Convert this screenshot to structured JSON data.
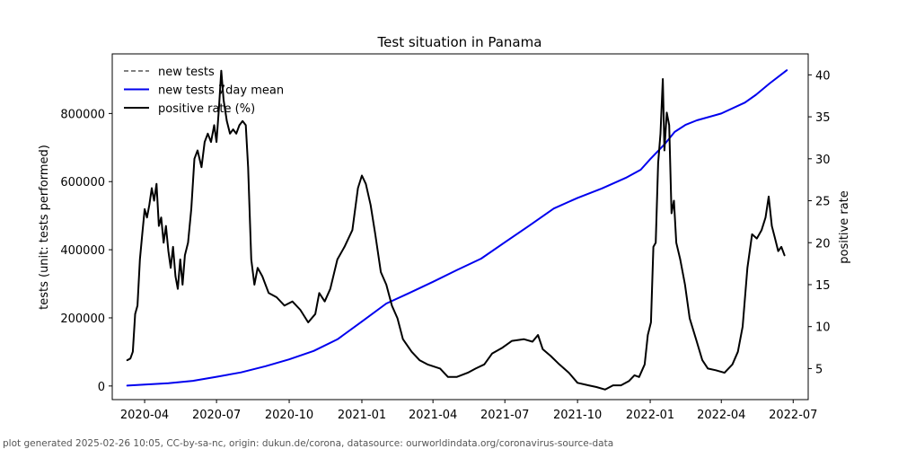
{
  "chart_data": {
    "type": "line",
    "title": "Test situation in Panama",
    "ylabel_left": "tests (unit: tests performed)",
    "ylabel_right": "positive rate",
    "xlim": [
      "2020-02-20",
      "2022-07-20"
    ],
    "ylim_left": [
      -40000,
      975000
    ],
    "ylim_right": [
      1.3,
      42.5
    ],
    "x_ticks": [
      {
        "date": "2020-04-01",
        "label": "2020-04"
      },
      {
        "date": "2020-07-01",
        "label": "2020-07"
      },
      {
        "date": "2020-10-01",
        "label": "2020-10"
      },
      {
        "date": "2021-01-01",
        "label": "2021-01"
      },
      {
        "date": "2021-04-01",
        "label": "2021-04"
      },
      {
        "date": "2021-07-01",
        "label": "2021-07"
      },
      {
        "date": "2021-10-01",
        "label": "2021-10"
      },
      {
        "date": "2022-01-01",
        "label": "2022-01"
      },
      {
        "date": "2022-04-01",
        "label": "2022-04"
      },
      {
        "date": "2022-07-01",
        "label": "2022-07"
      }
    ],
    "y_left_ticks": [
      {
        "value": 0,
        "label": "0"
      },
      {
        "value": 200000,
        "label": "200000"
      },
      {
        "value": 400000,
        "label": "400000"
      },
      {
        "value": 600000,
        "label": "600000"
      },
      {
        "value": 800000,
        "label": "800000"
      }
    ],
    "y_right_ticks": [
      {
        "value": 5,
        "label": "5"
      },
      {
        "value": 10,
        "label": "10"
      },
      {
        "value": 15,
        "label": "15"
      },
      {
        "value": 20,
        "label": "20"
      },
      {
        "value": 25,
        "label": "25"
      },
      {
        "value": 30,
        "label": "30"
      },
      {
        "value": 35,
        "label": "35"
      },
      {
        "value": 40,
        "label": "40"
      }
    ],
    "legend": {
      "position": "upper-left",
      "entries": [
        {
          "label": "new tests",
          "color": "#808080",
          "style": "dashed"
        },
        {
          "label": "new tests 7day mean",
          "color": "#0000ee",
          "style": "solid"
        },
        {
          "label": "positive rate (%)",
          "color": "#000000",
          "style": "solid"
        }
      ]
    },
    "series": [
      {
        "name": "new tests 7day mean",
        "axis": "left",
        "color": "#0000ee",
        "points": [
          [
            "2020-03-10",
            1000
          ],
          [
            "2020-04-01",
            4000
          ],
          [
            "2020-05-01",
            8000
          ],
          [
            "2020-06-01",
            15000
          ],
          [
            "2020-07-01",
            27000
          ],
          [
            "2020-08-01",
            40000
          ],
          [
            "2020-09-01",
            58000
          ],
          [
            "2020-10-01",
            78000
          ],
          [
            "2020-11-01",
            103000
          ],
          [
            "2020-12-01",
            137000
          ],
          [
            "2021-01-01",
            189000
          ],
          [
            "2021-02-01",
            242000
          ],
          [
            "2021-03-01",
            272000
          ],
          [
            "2021-04-01",
            306000
          ],
          [
            "2021-05-01",
            340000
          ],
          [
            "2021-06-01",
            374000
          ],
          [
            "2021-07-01",
            422000
          ],
          [
            "2021-08-01",
            471000
          ],
          [
            "2021-09-01",
            521000
          ],
          [
            "2021-10-01",
            552000
          ],
          [
            "2021-11-01",
            580000
          ],
          [
            "2021-12-01",
            611000
          ],
          [
            "2021-12-20",
            635000
          ],
          [
            "2022-01-01",
            666000
          ],
          [
            "2022-01-20",
            712000
          ],
          [
            "2022-02-01",
            746000
          ],
          [
            "2022-02-15",
            767000
          ],
          [
            "2022-03-01",
            780000
          ],
          [
            "2022-04-01",
            800000
          ],
          [
            "2022-05-01",
            832000
          ],
          [
            "2022-05-15",
            855000
          ],
          [
            "2022-06-01",
            888000
          ],
          [
            "2022-06-23",
            927000
          ]
        ]
      },
      {
        "name": "positive rate (%)",
        "axis": "right",
        "color": "#000000",
        "points": [
          [
            "2020-03-10",
            6.0
          ],
          [
            "2020-03-14",
            6.2
          ],
          [
            "2020-03-17",
            7.0
          ],
          [
            "2020-03-20",
            11.5
          ],
          [
            "2020-03-23",
            12.5
          ],
          [
            "2020-03-26",
            18.0
          ],
          [
            "2020-03-29",
            21.0
          ],
          [
            "2020-04-01",
            24.0
          ],
          [
            "2020-04-04",
            23.0
          ],
          [
            "2020-04-07",
            24.5
          ],
          [
            "2020-04-10",
            26.5
          ],
          [
            "2020-04-13",
            25.0
          ],
          [
            "2020-04-16",
            27.0
          ],
          [
            "2020-04-19",
            22.0
          ],
          [
            "2020-04-22",
            23.0
          ],
          [
            "2020-04-25",
            20.0
          ],
          [
            "2020-04-28",
            22.0
          ],
          [
            "2020-05-01",
            19.0
          ],
          [
            "2020-05-04",
            17.0
          ],
          [
            "2020-05-07",
            19.5
          ],
          [
            "2020-05-10",
            16.0
          ],
          [
            "2020-05-13",
            14.5
          ],
          [
            "2020-05-16",
            18.0
          ],
          [
            "2020-05-19",
            15.0
          ],
          [
            "2020-05-22",
            18.5
          ],
          [
            "2020-05-26",
            20.0
          ],
          [
            "2020-05-30",
            24.0
          ],
          [
            "2020-06-03",
            30.0
          ],
          [
            "2020-06-07",
            31.0
          ],
          [
            "2020-06-12",
            29.0
          ],
          [
            "2020-06-16",
            32.0
          ],
          [
            "2020-06-20",
            33.0
          ],
          [
            "2020-06-24",
            32.0
          ],
          [
            "2020-06-28",
            34.0
          ],
          [
            "2020-07-01",
            32.0
          ],
          [
            "2020-07-04",
            36.0
          ],
          [
            "2020-07-07",
            40.5
          ],
          [
            "2020-07-10",
            37.0
          ],
          [
            "2020-07-14",
            34.5
          ],
          [
            "2020-07-18",
            33.0
          ],
          [
            "2020-07-22",
            33.5
          ],
          [
            "2020-07-26",
            33.0
          ],
          [
            "2020-07-30",
            34.0
          ],
          [
            "2020-08-03",
            34.5
          ],
          [
            "2020-08-07",
            34.0
          ],
          [
            "2020-08-10",
            29.0
          ],
          [
            "2020-08-14",
            18.0
          ],
          [
            "2020-08-18",
            15.0
          ],
          [
            "2020-08-22",
            17.0
          ],
          [
            "2020-08-28",
            16.0
          ],
          [
            "2020-09-05",
            14.0
          ],
          [
            "2020-09-15",
            13.5
          ],
          [
            "2020-09-25",
            12.5
          ],
          [
            "2020-10-05",
            13.0
          ],
          [
            "2020-10-15",
            12.0
          ],
          [
            "2020-10-25",
            10.5
          ],
          [
            "2020-11-03",
            11.5
          ],
          [
            "2020-11-08",
            14.0
          ],
          [
            "2020-11-15",
            13.0
          ],
          [
            "2020-11-22",
            14.5
          ],
          [
            "2020-12-01",
            18.0
          ],
          [
            "2020-12-10",
            19.5
          ],
          [
            "2020-12-20",
            21.5
          ],
          [
            "2020-12-27",
            26.5
          ],
          [
            "2021-01-01",
            28.0
          ],
          [
            "2021-01-06",
            27.0
          ],
          [
            "2021-01-12",
            24.5
          ],
          [
            "2021-01-18",
            21.0
          ],
          [
            "2021-01-25",
            16.5
          ],
          [
            "2021-02-01",
            15.0
          ],
          [
            "2021-02-08",
            12.5
          ],
          [
            "2021-02-15",
            11.0
          ],
          [
            "2021-02-22",
            8.5
          ],
          [
            "2021-03-05",
            7.0
          ],
          [
            "2021-03-15",
            6.0
          ],
          [
            "2021-03-25",
            5.5
          ],
          [
            "2021-04-10",
            5.0
          ],
          [
            "2021-04-20",
            4.0
          ],
          [
            "2021-05-01",
            4.0
          ],
          [
            "2021-05-15",
            4.5
          ],
          [
            "2021-05-25",
            5.0
          ],
          [
            "2021-06-05",
            5.5
          ],
          [
            "2021-06-15",
            6.8
          ],
          [
            "2021-06-28",
            7.5
          ],
          [
            "2021-07-10",
            8.3
          ],
          [
            "2021-07-25",
            8.5
          ],
          [
            "2021-08-05",
            8.2
          ],
          [
            "2021-08-12",
            9.0
          ],
          [
            "2021-08-18",
            7.3
          ],
          [
            "2021-08-28",
            6.5
          ],
          [
            "2021-09-08",
            5.5
          ],
          [
            "2021-09-20",
            4.5
          ],
          [
            "2021-10-01",
            3.3
          ],
          [
            "2021-10-15",
            3.0
          ],
          [
            "2021-10-25",
            2.8
          ],
          [
            "2021-11-05",
            2.5
          ],
          [
            "2021-11-15",
            3.0
          ],
          [
            "2021-11-25",
            3.0
          ],
          [
            "2021-12-05",
            3.5
          ],
          [
            "2021-12-12",
            4.2
          ],
          [
            "2021-12-18",
            4.0
          ],
          [
            "2021-12-25",
            5.5
          ],
          [
            "2021-12-29",
            9.0
          ],
          [
            "2022-01-02",
            10.5
          ],
          [
            "2022-01-05",
            19.5
          ],
          [
            "2022-01-08",
            20.0
          ],
          [
            "2022-01-11",
            29.5
          ],
          [
            "2022-01-14",
            33.0
          ],
          [
            "2022-01-17",
            39.5
          ],
          [
            "2022-01-19",
            31.0
          ],
          [
            "2022-01-22",
            35.5
          ],
          [
            "2022-01-25",
            34.0
          ],
          [
            "2022-01-28",
            23.5
          ],
          [
            "2022-01-31",
            25.0
          ],
          [
            "2022-02-03",
            20.0
          ],
          [
            "2022-02-08",
            18.0
          ],
          [
            "2022-02-14",
            15.0
          ],
          [
            "2022-02-20",
            11.0
          ],
          [
            "2022-02-28",
            8.5
          ],
          [
            "2022-03-08",
            6.0
          ],
          [
            "2022-03-15",
            5.0
          ],
          [
            "2022-03-25",
            4.8
          ],
          [
            "2022-04-05",
            4.5
          ],
          [
            "2022-04-15",
            5.5
          ],
          [
            "2022-04-22",
            7.0
          ],
          [
            "2022-04-28",
            10.0
          ],
          [
            "2022-05-04",
            17.0
          ],
          [
            "2022-05-10",
            21.0
          ],
          [
            "2022-05-16",
            20.5
          ],
          [
            "2022-05-22",
            21.5
          ],
          [
            "2022-05-27",
            23.0
          ],
          [
            "2022-05-31",
            25.5
          ],
          [
            "2022-06-04",
            22.0
          ],
          [
            "2022-06-08",
            20.5
          ],
          [
            "2022-06-12",
            19.0
          ],
          [
            "2022-06-16",
            19.5
          ],
          [
            "2022-06-20",
            18.5
          ]
        ]
      }
    ]
  },
  "footer_text": "plot generated 2025-02-26 10:05, CC-by-sa-nc, origin: dukun.de/corona, datasource: ourworldindata.org/coronavirus-source-data"
}
